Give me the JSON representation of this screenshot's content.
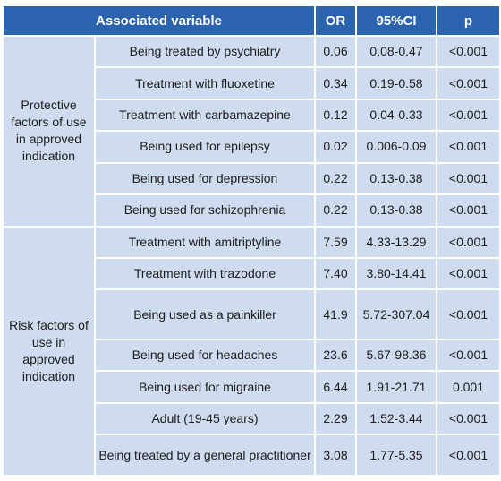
{
  "table": {
    "headers": [
      "Associated variable",
      "OR",
      "95%CI",
      "p"
    ],
    "groups": [
      {
        "label": "Protective factors of use in approved indication",
        "rows": [
          {
            "variable": "Being treated by psychiatry",
            "or": "0.06",
            "ci": "0.08-0.47",
            "p": "<0.001"
          },
          {
            "variable": "Treatment with fluoxetine",
            "or": "0.34",
            "ci": "0.19-0.58",
            "p": "<0.001"
          },
          {
            "variable": "Treatment with carbamazepine",
            "or": "0.12",
            "ci": "0.04-0.33",
            "p": "<0.001"
          },
          {
            "variable": "Being used for epilepsy",
            "or": "0.02",
            "ci": "0.006-0.09",
            "p": "<0.001"
          },
          {
            "variable": "Being used for depression",
            "or": "0.22",
            "ci": "0.13-0.38",
            "p": "<0.001"
          },
          {
            "variable": "Being used for schizophrenia",
            "or": "0.22",
            "ci": "0.13-0.38",
            "p": "<0.001"
          }
        ]
      },
      {
        "label": "Risk factors of use in approved indication",
        "rows": [
          {
            "variable": "Treatment with amitriptyline",
            "or": "7.59",
            "ci": "4.33-13.29",
            "p": "<0.001"
          },
          {
            "variable": "Treatment with trazodone",
            "or": "7.40",
            "ci": "3.80-14.41",
            "p": "<0.001"
          },
          {
            "variable": "Being used as a painkiller",
            "or": "41.9",
            "ci": "5.72-307.04",
            "p": "<0.001"
          },
          {
            "variable": "Being used for headaches",
            "or": "23.6",
            "ci": "5.67-98.36",
            "p": "<0.001"
          },
          {
            "variable": "Being used for migraine",
            "or": "6.44",
            "ci": "1.91-21.71",
            "p": "0.001"
          },
          {
            "variable": "Adult (19-45 years)",
            "or": "2.29",
            "ci": "1.52-3.44",
            "p": "<0.001"
          },
          {
            "variable": "Being treated by a general practitioner",
            "or": "3.08",
            "ci": "1.77-5.35",
            "p": "<0.001"
          }
        ]
      }
    ]
  }
}
